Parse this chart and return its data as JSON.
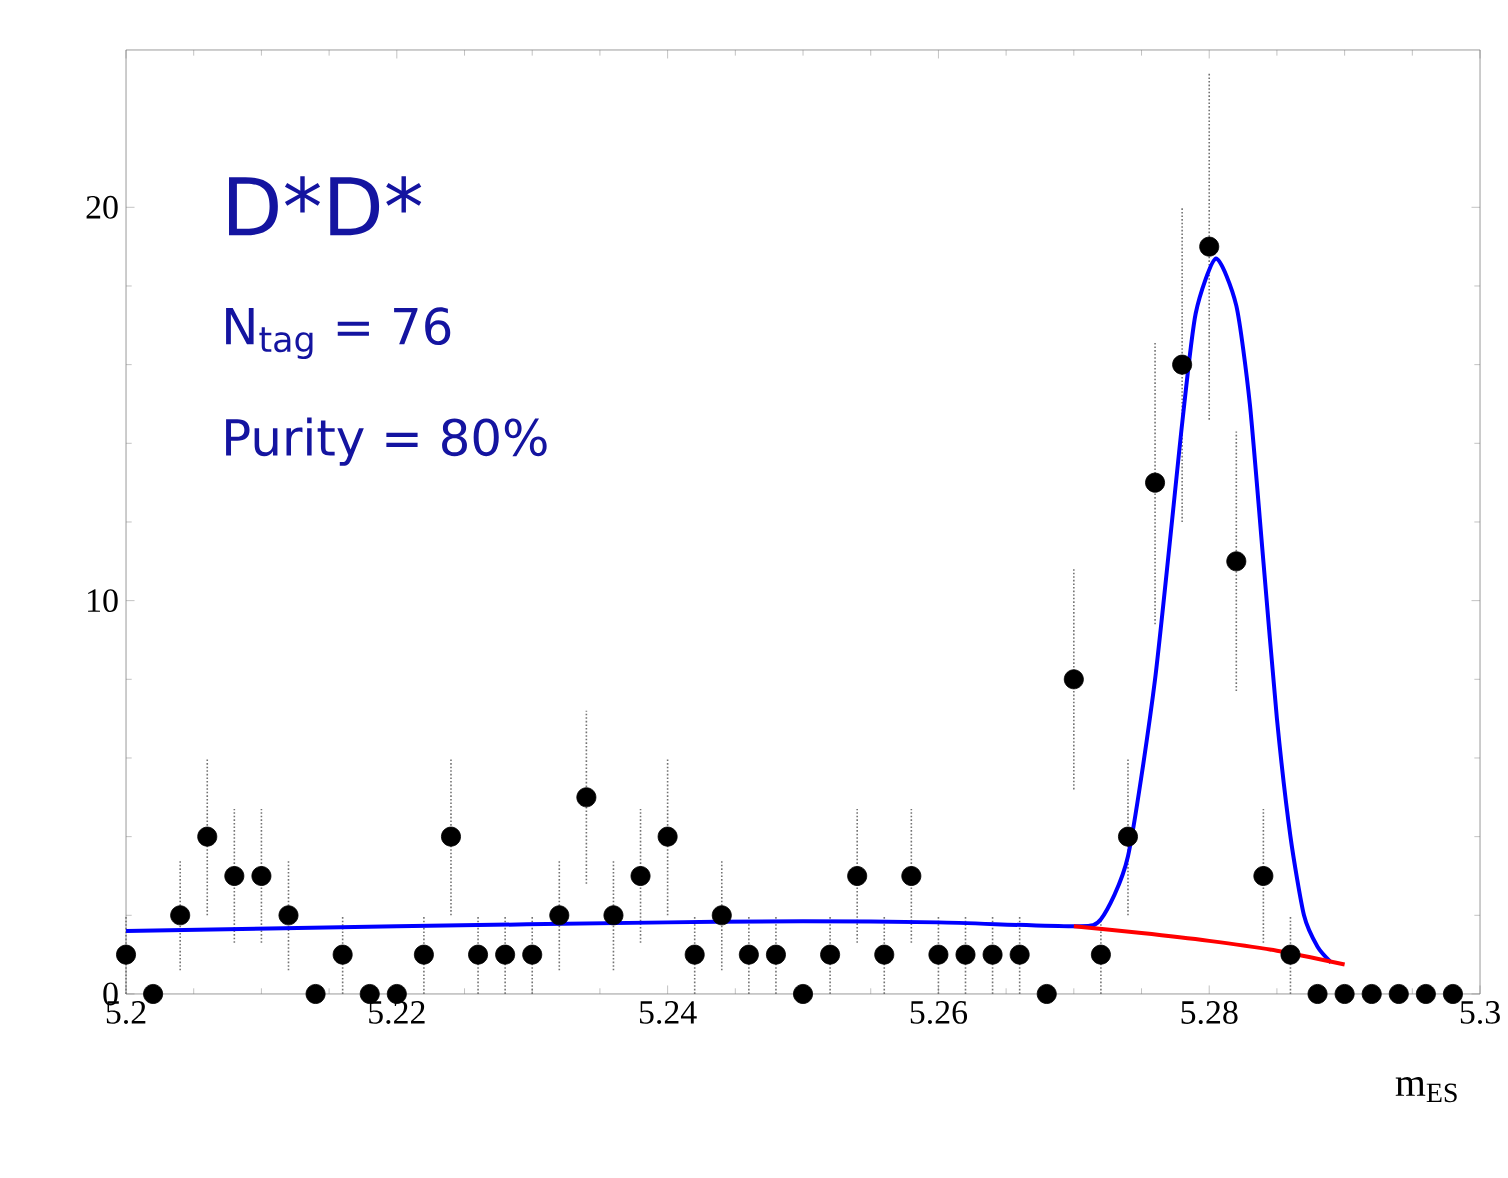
{
  "chart_data": {
    "type": "scatter",
    "xlabel": "m$_{ES}$",
    "annotations": [
      "D*D*",
      "N$_{tag}$ = 76",
      "Purity = 80%"
    ],
    "x": [
      5.2,
      5.202,
      5.204,
      5.206,
      5.208,
      5.21,
      5.212,
      5.214,
      5.216,
      5.218,
      5.22,
      5.222,
      5.224,
      5.226,
      5.228,
      5.23,
      5.232,
      5.234,
      5.236,
      5.238,
      5.24,
      5.242,
      5.244,
      5.246,
      5.248,
      5.25,
      5.252,
      5.254,
      5.256,
      5.258,
      5.26,
      5.262,
      5.264,
      5.266,
      5.268,
      5.27,
      5.272,
      5.274,
      5.276,
      5.278,
      5.28,
      5.282,
      5.284,
      5.286,
      5.288,
      5.29,
      5.292,
      5.294,
      5.296,
      5.298
    ],
    "series": [
      {
        "color": "#000000",
        "marker": "circle",
        "values": [
          1,
          0,
          2,
          4,
          3,
          3,
          2,
          0,
          1,
          0,
          0,
          1,
          4,
          1,
          1,
          1,
          2,
          5,
          2,
          3,
          4,
          1,
          2,
          1,
          1,
          0,
          1,
          3,
          1,
          3,
          1,
          1,
          1,
          1,
          0,
          8,
          1,
          4,
          13,
          16,
          19,
          11,
          3,
          1,
          0,
          0,
          0,
          0,
          0,
          0
        ],
        "errors": [
          1,
          null,
          1.4,
          2,
          1.7,
          1.7,
          1.4,
          null,
          1,
          null,
          null,
          1,
          2,
          1,
          1,
          1,
          1.4,
          2.2,
          1.4,
          1.7,
          2,
          1,
          1.4,
          1,
          1,
          null,
          1,
          1.7,
          1,
          1.7,
          1,
          1,
          1,
          1,
          null,
          2.8,
          1,
          2,
          3.6,
          4,
          4.4,
          3.3,
          1.7,
          1,
          null,
          null,
          null,
          null,
          null,
          null
        ]
      },
      {
        "type": "line",
        "color": "#0000ff",
        "x": [
          5.2,
          5.22,
          5.24,
          5.25,
          5.26,
          5.27,
          5.272,
          5.274,
          5.276,
          5.278,
          5.279,
          5.2805,
          5.282,
          5.283,
          5.284,
          5.285,
          5.286,
          5.287,
          5.288,
          5.289
        ],
        "values": [
          1.6,
          1.72,
          1.82,
          1.85,
          1.82,
          1.72,
          1.9,
          3.5,
          8,
          14.5,
          17.3,
          18.7,
          17.5,
          15,
          11,
          7,
          4,
          2,
          1.2,
          0.8
        ]
      },
      {
        "type": "line",
        "color": "#ff0000",
        "x": [
          5.27,
          5.275,
          5.28,
          5.285,
          5.29
        ],
        "values": [
          1.72,
          1.55,
          1.35,
          1.1,
          0.75
        ]
      }
    ],
    "xlim": [
      5.2,
      5.3
    ],
    "ylim": [
      0,
      24
    ],
    "xticks": [
      5.2,
      5.22,
      5.24,
      5.26,
      5.28,
      5.3
    ],
    "yticks": [
      0,
      10,
      20
    ],
    "grid": false
  }
}
